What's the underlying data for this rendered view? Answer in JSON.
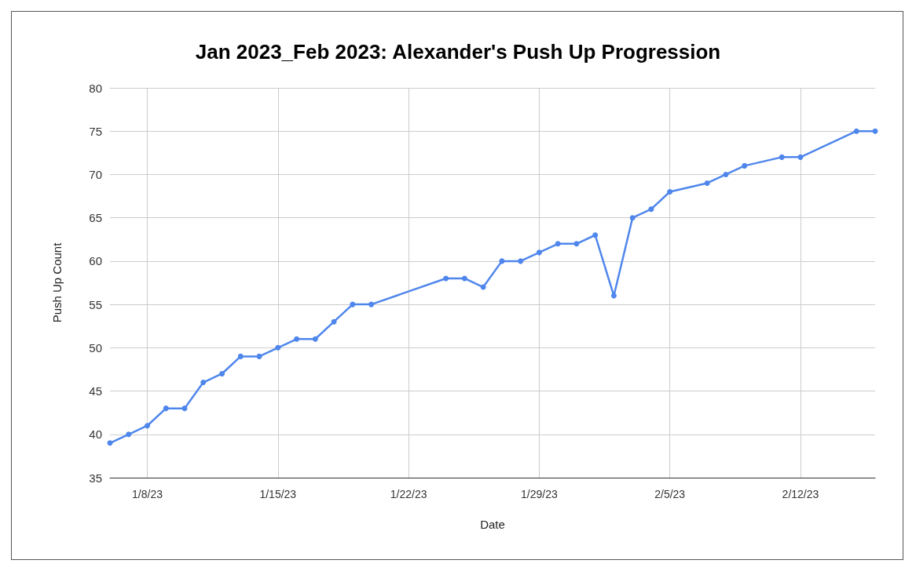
{
  "chart_data": {
    "type": "line",
    "title": "Jan 2023_Feb 2023: Alexander's Push Up Progression",
    "xlabel": "Date",
    "ylabel": "Push Up Count",
    "x": [
      "2023-01-06",
      "2023-01-07",
      "2023-01-08",
      "2023-01-09",
      "2023-01-10",
      "2023-01-11",
      "2023-01-12",
      "2023-01-13",
      "2023-01-14",
      "2023-01-15",
      "2023-01-16",
      "2023-01-17",
      "2023-01-18",
      "2023-01-19",
      "2023-01-20",
      "2023-01-24",
      "2023-01-25",
      "2023-01-26",
      "2023-01-27",
      "2023-01-28",
      "2023-01-29",
      "2023-01-30",
      "2023-01-31",
      "2023-02-01",
      "2023-02-02",
      "2023-02-03",
      "2023-02-04",
      "2023-02-05",
      "2023-02-07",
      "2023-02-08",
      "2023-02-09",
      "2023-02-11",
      "2023-02-12",
      "2023-02-15",
      "2023-02-16"
    ],
    "series": [
      {
        "color": "#4f86ec",
        "values": [
          39,
          40,
          41,
          43,
          43,
          46,
          47,
          49,
          49,
          50,
          51,
          51,
          53,
          55,
          55,
          58,
          58,
          57,
          60,
          60,
          61,
          62,
          62,
          63,
          56,
          65,
          66,
          68,
          69,
          70,
          71,
          72,
          72,
          75,
          75
        ]
      }
    ],
    "xlim": [
      "2023-01-06",
      "2023-02-16"
    ],
    "xticks": [
      {
        "value": "2023-01-08",
        "label": "1/8/23"
      },
      {
        "value": "2023-01-15",
        "label": "1/15/23"
      },
      {
        "value": "2023-01-22",
        "label": "1/22/23"
      },
      {
        "value": "2023-01-29",
        "label": "1/29/23"
      },
      {
        "value": "2023-02-05",
        "label": "2/5/23"
      },
      {
        "value": "2023-02-12",
        "label": "2/12/23"
      }
    ],
    "ylim": [
      35,
      80
    ],
    "yticks": [
      35,
      40,
      45,
      50,
      55,
      60,
      65,
      70,
      75,
      80
    ],
    "grid": true,
    "marker": "circle",
    "line_style": "solid"
  }
}
